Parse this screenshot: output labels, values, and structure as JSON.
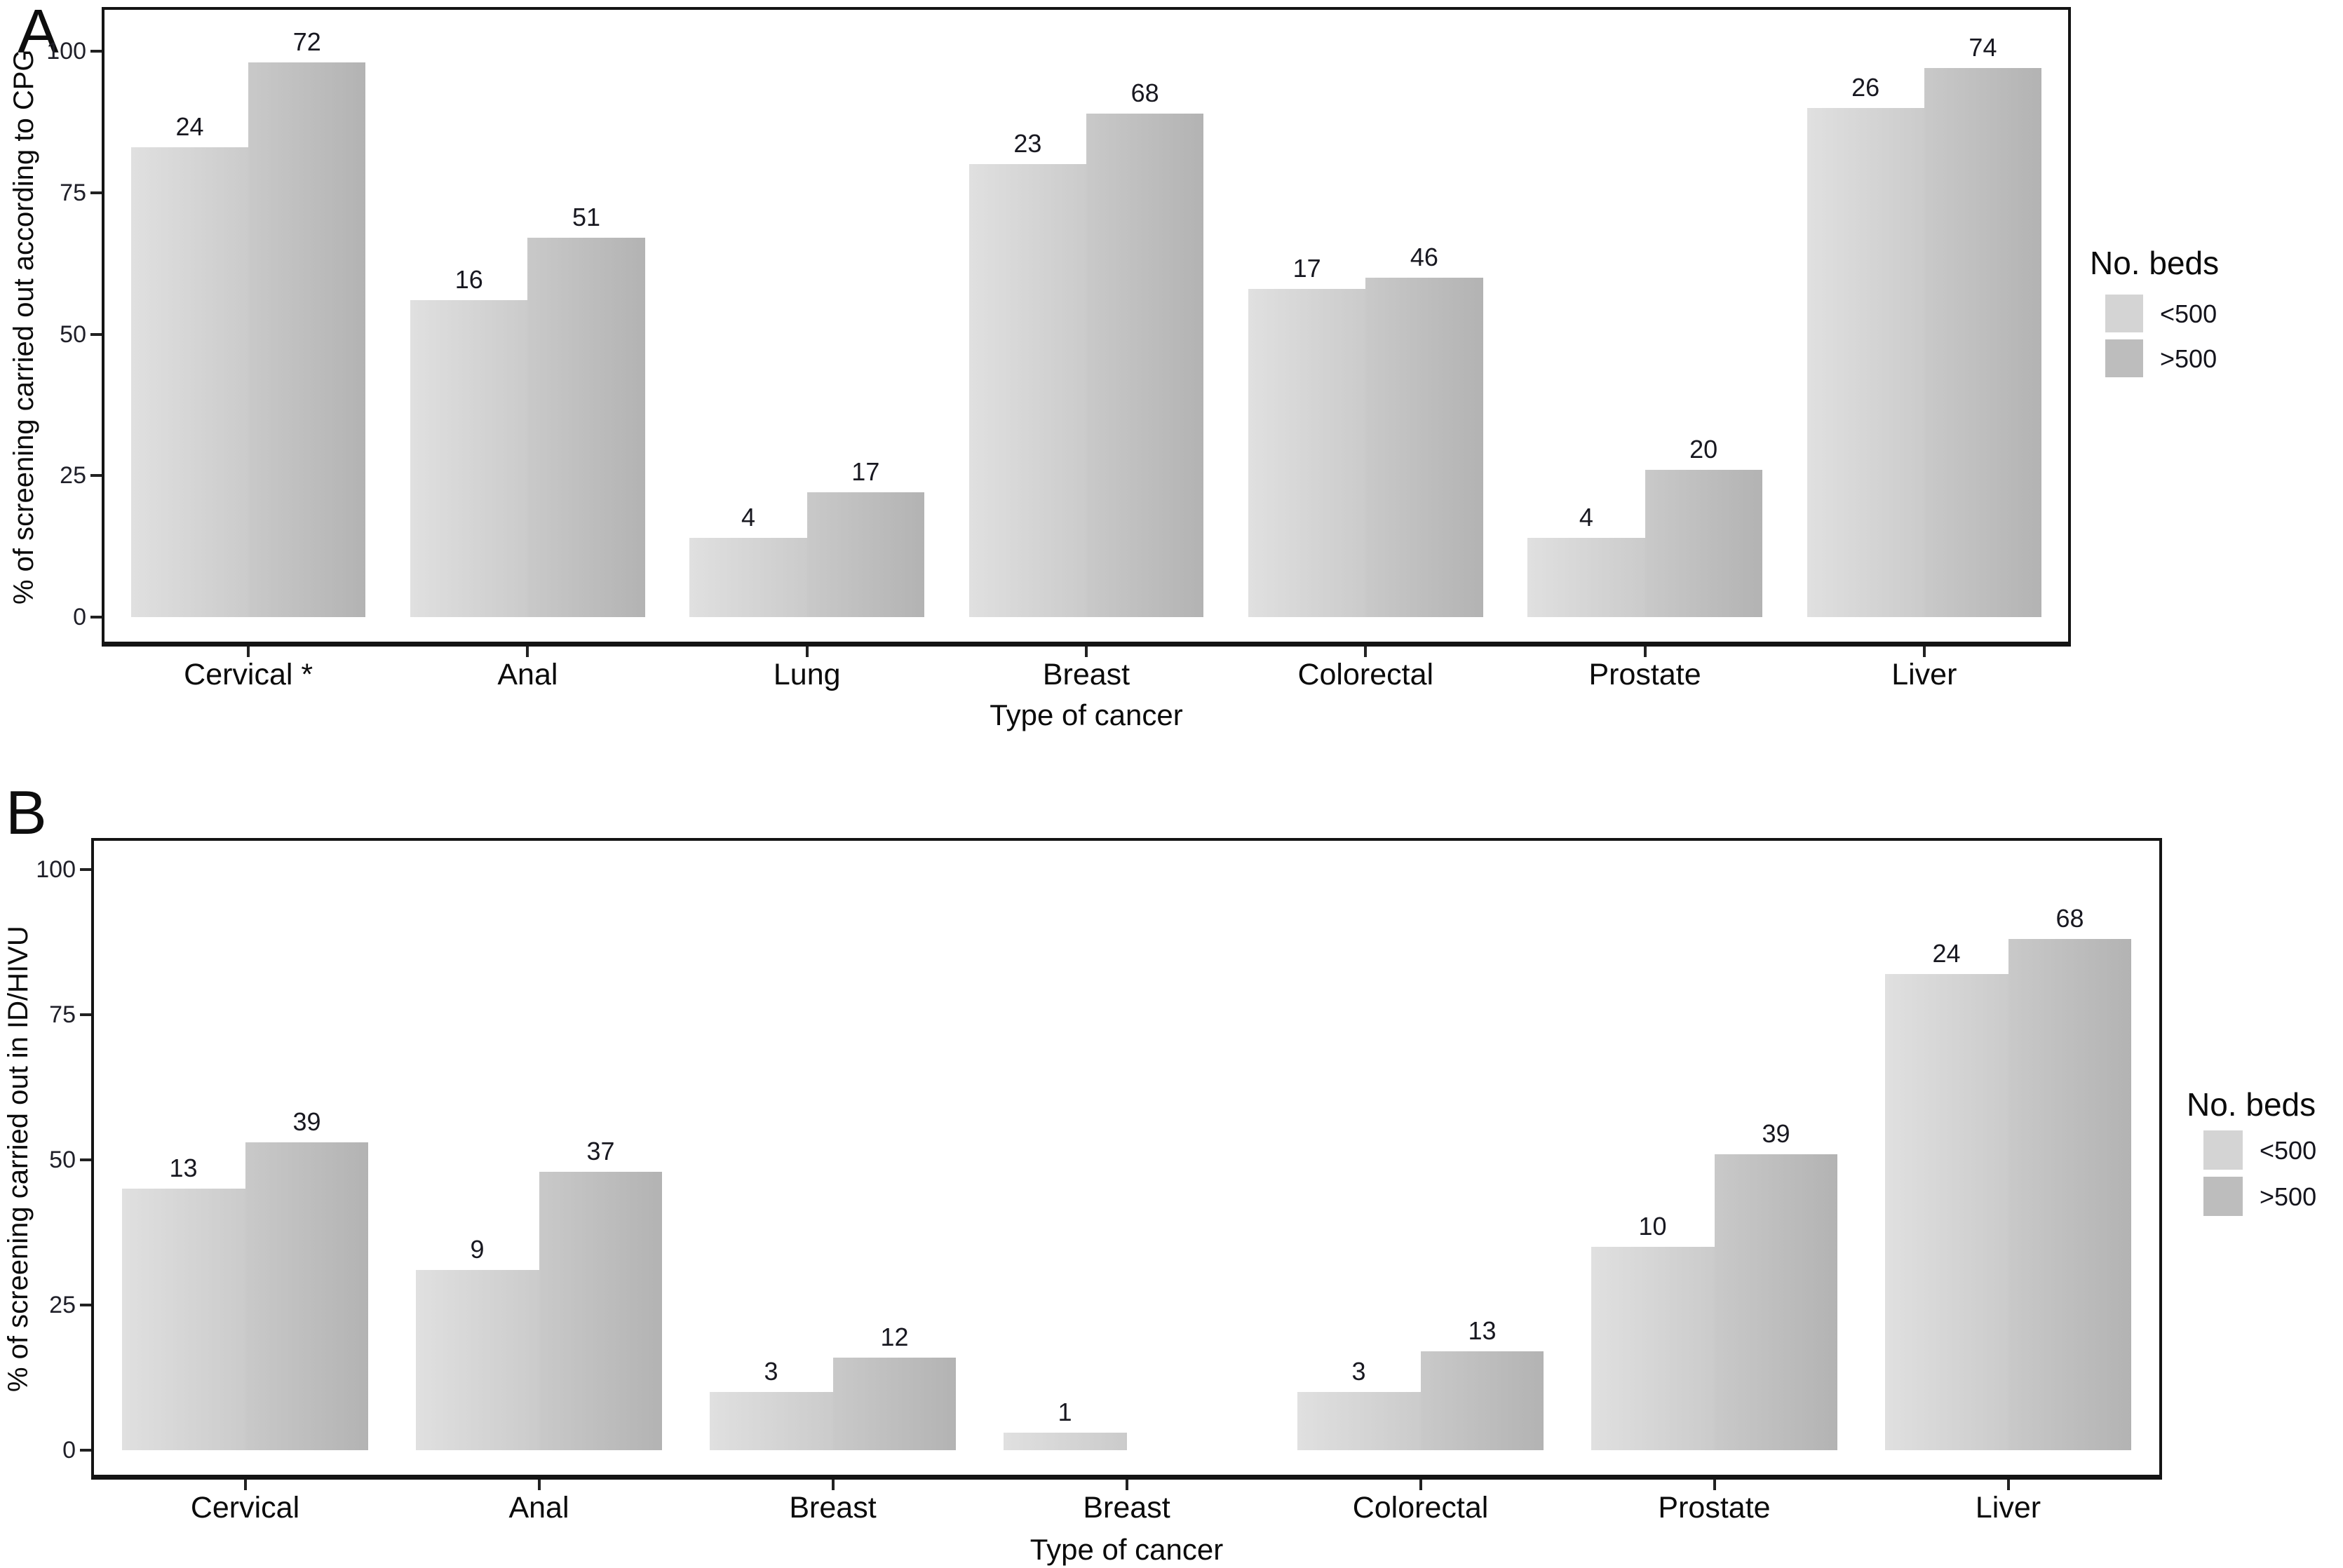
{
  "figure": {
    "background": "#ffffff",
    "series_colors": {
      "light": "#d4d4d4",
      "dark": "#bdbdbd"
    }
  },
  "chart_data": [
    {
      "type": "bar",
      "panel_label": "A",
      "title": "",
      "xlabel": "Type of cancer",
      "ylabel": "% of screening carried out according to CPG",
      "ylim": [
        0,
        100
      ],
      "y_ticks": [
        "0",
        "25",
        "50",
        "75",
        "100"
      ],
      "grid": false,
      "legend": {
        "title": "No. beds",
        "position": "right",
        "items": [
          {
            "label": "<500",
            "color": "#d4d4d4"
          },
          {
            "label": ">500",
            "color": "#bdbdbd"
          }
        ]
      },
      "categories": [
        "Cervical *",
        "Anal",
        "Lung",
        "Breast",
        "Colorectal",
        "Prostate",
        "Liver"
      ],
      "series": [
        {
          "name": "<500",
          "color": "#d4d4d4",
          "bar_labels": [
            "24",
            "16",
            "4",
            "23",
            "17",
            "4",
            "26"
          ],
          "bar_heights_pct": [
            83,
            56,
            14,
            80,
            58,
            14,
            90
          ]
        },
        {
          "name": ">500",
          "color": "#bdbdbd",
          "bar_labels": [
            "72",
            "51",
            "17",
            "68",
            "46",
            "20",
            "74"
          ],
          "bar_heights_pct": [
            98,
            67,
            22,
            89,
            60,
            26,
            97
          ]
        }
      ]
    },
    {
      "type": "bar",
      "panel_label": "B",
      "title": "",
      "xlabel": "Type of cancer",
      "ylabel": "% of screening carried out in ID/HIVU",
      "ylim": [
        0,
        100
      ],
      "y_ticks": [
        "0",
        "25",
        "50",
        "75",
        "100"
      ],
      "grid": false,
      "legend": {
        "title": "No. beds",
        "position": "right",
        "items": [
          {
            "label": "<500",
            "color": "#d4d4d4"
          },
          {
            "label": ">500",
            "color": "#bdbdbd"
          }
        ]
      },
      "categories": [
        "Cervical",
        "Anal",
        "Breast",
        "Breast",
        "Colorectal",
        "Prostate",
        "Liver"
      ],
      "series": [
        {
          "name": "<500",
          "color": "#d4d4d4",
          "bar_labels": [
            "13",
            "9",
            "3",
            "1",
            "3",
            "10",
            "24"
          ],
          "bar_heights_pct": [
            45,
            31,
            10,
            3,
            10,
            35,
            82
          ]
        },
        {
          "name": ">500",
          "color": "#bdbdbd",
          "bar_labels": [
            "39",
            "37",
            "12",
            null,
            "13",
            "39",
            "68"
          ],
          "bar_heights_pct": [
            53,
            48,
            16,
            null,
            17,
            51,
            88
          ]
        }
      ]
    }
  ]
}
